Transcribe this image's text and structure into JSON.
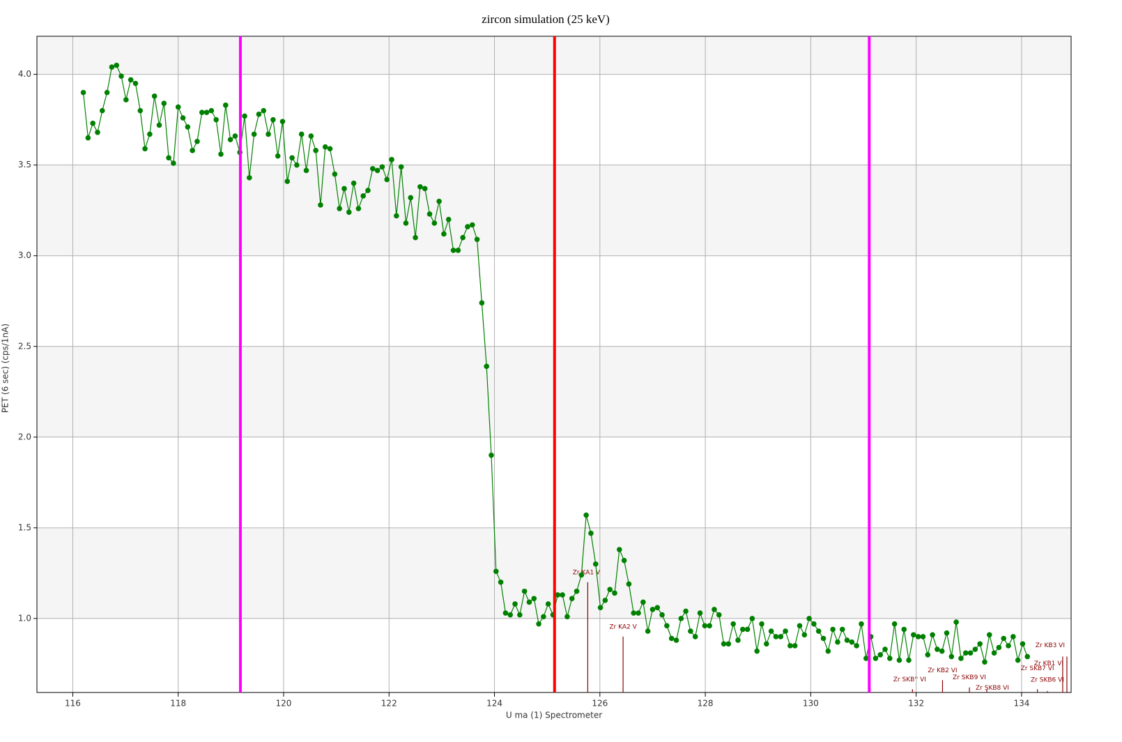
{
  "chart_data": {
    "type": "line",
    "title": "zircon simulation (25 keV)",
    "xlabel": "U  ma (1) Spectrometer",
    "ylabel": "PET (6 sec) (cps/1nA)",
    "xlim": [
      115.32,
      134.94
    ],
    "ylim": [
      0.592,
      4.21
    ],
    "xticks": [
      116,
      118,
      120,
      122,
      124,
      126,
      128,
      130,
      132,
      134
    ],
    "yticks": [
      {
        "value": 1,
        "label": "1.0"
      },
      1.5,
      {
        "value": 2,
        "label": "2.0"
      },
      2.5,
      {
        "value": 3,
        "label": "3.0"
      },
      3.5,
      {
        "value": 4,
        "label": "4.0"
      }
    ],
    "grid": true,
    "x": [
      116.2,
      116.29,
      116.38,
      116.47,
      116.56,
      116.65,
      116.74,
      116.83,
      116.92,
      117.01,
      117.1,
      117.19,
      117.28,
      117.37,
      117.46,
      117.55,
      117.64,
      117.73,
      117.82,
      117.91,
      118,
      118.09,
      118.18,
      118.27,
      118.36,
      118.45,
      118.54,
      118.63,
      118.72,
      118.81,
      118.9,
      118.99,
      119.08,
      119.17,
      119.26,
      119.35,
      119.44,
      119.53,
      119.62,
      119.71,
      119.8,
      119.89,
      119.98,
      120.07,
      120.16,
      120.25,
      120.34,
      120.43,
      120.52,
      120.61,
      120.7,
      120.79,
      120.88,
      120.97,
      121.06,
      121.15,
      121.24,
      121.33,
      121.42,
      121.51,
      121.6,
      121.69,
      121.78,
      121.87,
      121.96,
      122.05,
      122.14,
      122.23,
      122.32,
      122.41,
      122.5,
      122.59,
      122.68,
      122.77,
      122.86,
      122.95,
      123.04,
      123.13,
      123.22,
      123.31,
      123.4,
      123.49,
      123.58,
      123.67,
      123.76,
      123.85,
      123.94,
      124.03,
      124.12,
      124.21,
      124.3,
      124.39,
      124.48,
      124.57,
      124.66,
      124.75,
      124.84,
      124.93,
      125.02,
      125.11,
      125.2,
      125.29,
      125.38,
      125.47,
      125.56,
      125.65,
      125.74,
      125.83,
      125.92,
      126.01,
      126.1,
      126.19,
      126.28,
      126.37,
      126.46,
      126.55,
      126.64,
      126.73,
      126.82,
      126.91,
      127,
      127.09,
      127.18,
      127.27,
      127.36,
      127.45,
      127.54,
      127.63,
      127.72,
      127.81,
      127.9,
      127.99,
      128.08,
      128.17,
      128.26,
      128.35,
      128.44,
      128.53,
      128.62,
      128.71,
      128.8,
      128.89,
      128.98,
      129.07,
      129.16,
      129.25,
      129.34,
      129.43,
      129.52,
      129.61,
      129.7,
      129.79,
      129.88,
      129.97,
      130.06,
      130.15,
      130.24,
      130.33,
      130.42,
      130.51,
      130.6,
      130.69,
      130.78,
      130.87,
      130.96,
      131.05,
      131.14,
      131.23,
      131.32,
      131.41,
      131.5,
      131.59,
      131.68,
      131.77,
      131.86,
      131.95,
      132.04,
      132.13,
      132.22,
      132.31,
      132.4,
      132.49,
      132.58,
      132.67,
      132.76,
      132.85,
      132.94,
      133.03,
      133.12,
      133.21,
      133.3,
      133.39,
      133.48,
      133.57,
      133.66,
      133.75,
      133.84,
      133.93,
      134.02,
      134.11
    ],
    "series": [
      {
        "color": "#008000",
        "values": [
          3.9,
          3.65,
          3.73,
          3.68,
          3.8,
          3.9,
          4.04,
          4.05,
          3.99,
          3.86,
          3.97,
          3.95,
          3.8,
          3.59,
          3.67,
          3.88,
          3.72,
          3.84,
          3.54,
          3.51,
          3.82,
          3.76,
          3.71,
          3.58,
          3.63,
          3.79,
          3.79,
          3.8,
          3.75,
          3.56,
          3.83,
          3.64,
          3.66,
          3.57,
          3.77,
          3.43,
          3.67,
          3.78,
          3.8,
          3.67,
          3.75,
          3.55,
          3.74,
          3.41,
          3.54,
          3.5,
          3.67,
          3.47,
          3.66,
          3.58,
          3.28,
          3.6,
          3.59,
          3.45,
          3.26,
          3.37,
          3.24,
          3.4,
          3.26,
          3.33,
          3.36,
          3.48,
          3.47,
          3.49,
          3.42,
          3.53,
          3.22,
          3.49,
          3.18,
          3.32,
          3.1,
          3.38,
          3.37,
          3.23,
          3.18,
          3.3,
          3.12,
          3.2,
          3.03,
          3.03,
          3.1,
          3.16,
          3.17,
          3.09,
          2.74,
          2.39,
          1.9,
          1.26,
          1.2,
          1.03,
          1.02,
          1.08,
          1.02,
          1.15,
          1.09,
          1.11,
          0.97,
          1.01,
          1.08,
          1.02,
          1.13,
          1.13,
          1.01,
          1.11,
          1.15,
          1.24,
          1.57,
          1.47,
          1.3,
          1.06,
          1.1,
          1.16,
          1.14,
          1.38,
          1.32,
          1.19,
          1.03,
          1.03,
          1.09,
          0.93,
          1.05,
          1.06,
          1.02,
          0.96,
          0.89,
          0.88,
          1.0,
          1.04,
          0.93,
          0.9,
          1.03,
          0.96,
          0.96,
          1.05,
          1.02,
          0.86,
          0.86,
          0.97,
          0.88,
          0.94,
          0.94,
          1.0,
          0.82,
          0.97,
          0.86,
          0.93,
          0.9,
          0.9,
          0.93,
          0.85,
          0.85,
          0.96,
          0.91,
          1.0,
          0.97,
          0.93,
          0.89,
          0.82,
          0.94,
          0.87,
          0.94,
          0.88,
          0.87,
          0.85,
          0.97,
          0.78,
          0.9,
          0.78,
          0.8,
          0.83,
          0.78,
          0.97,
          0.77,
          0.94,
          0.77,
          0.91,
          0.9,
          0.9,
          0.8,
          0.91,
          0.83,
          0.82,
          0.92,
          0.79,
          0.98,
          0.78,
          0.81,
          0.81,
          0.83,
          0.86,
          0.76,
          0.91,
          0.81,
          0.84,
          0.89,
          0.85,
          0.9,
          0.77,
          0.86,
          0.79
        ]
      }
    ],
    "vlines": [
      {
        "x": 119.18,
        "color": "#ff00ff"
      },
      {
        "x": 125.14,
        "color": "#ff0000"
      },
      {
        "x": 131.11,
        "color": "#ff00ff"
      }
    ],
    "peaks": [
      {
        "label": "Zr KA1 V",
        "x": 125.77,
        "height": 1.2
      },
      {
        "label": "Zr KA2 V",
        "x": 126.44,
        "height": 0.9
      },
      {
        "label": "Zr SKB'' VI",
        "x": 131.93,
        "height": 0.61
      },
      {
        "label": "Zr KB2 VI",
        "x": 132.5,
        "height": 0.66
      },
      {
        "label": "Zr SKB9 VI",
        "x": 133.01,
        "height": 0.62
      },
      {
        "label": "Zr SKB8 VI",
        "x": 133.34,
        "height": 0.61
      },
      {
        "label": "Zr SKB7 VI",
        "x": 134.3,
        "height": 0.61
      },
      {
        "label": "Zr SKB6 VI",
        "x": 134.49,
        "height": 0.6
      },
      {
        "label": "Zr KB3 VI",
        "x": 134.78,
        "height": 0.79
      },
      {
        "label": "Zr KB1 VI",
        "x": 134.86,
        "height": 0.79
      }
    ],
    "peak_color": "#8b0000"
  }
}
